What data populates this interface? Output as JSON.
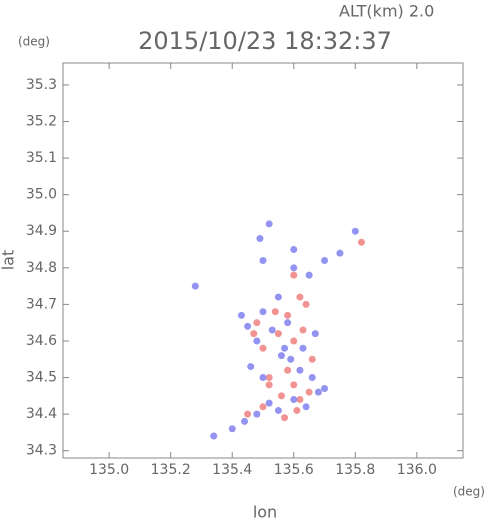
{
  "chart_data": {
    "type": "scatter",
    "title": "2015/10/23 18:32:37",
    "annotation": "ALT(km) 2.0",
    "x_unit": "(deg)",
    "y_unit": "(deg)",
    "x_label": "lon",
    "y_label": "lat",
    "xlim": [
      134.85,
      136.15
    ],
    "ylim": [
      34.28,
      35.36
    ],
    "xticks": [
      {
        "value": 135.0,
        "label": "135.0"
      },
      135.2,
      135.4,
      135.6,
      135.8,
      {
        "value": 136.0,
        "label": "136.0"
      }
    ],
    "yticks": [
      34.3,
      34.4,
      34.5,
      34.6,
      34.7,
      34.8,
      34.9,
      {
        "value": 35.0,
        "label": "35.0"
      },
      35.1,
      35.2,
      35.3
    ],
    "series": [
      {
        "color": "#f08080",
        "x": [
          135.45,
          135.5,
          135.56,
          135.6,
          135.62,
          135.52,
          135.48,
          135.58,
          135.64,
          135.55,
          135.5,
          135.6,
          135.63,
          135.66,
          135.52,
          135.58,
          135.61,
          135.47,
          135.6,
          135.82,
          135.62,
          135.54,
          135.57,
          135.65
        ],
        "y": [
          34.4,
          34.42,
          34.45,
          34.48,
          34.44,
          34.5,
          34.65,
          34.67,
          34.7,
          34.62,
          34.58,
          34.6,
          34.63,
          34.55,
          34.48,
          34.52,
          34.41,
          34.62,
          34.78,
          34.87,
          34.72,
          34.68,
          34.39,
          34.46
        ]
      },
      {
        "color": "#8080f0",
        "x": [
          135.34,
          135.4,
          135.44,
          135.48,
          135.52,
          135.55,
          135.6,
          135.64,
          135.68,
          135.5,
          135.46,
          135.56,
          135.62,
          135.66,
          135.7,
          135.48,
          135.53,
          135.58,
          135.63,
          135.45,
          135.5,
          135.55,
          135.28,
          135.5,
          135.6,
          135.7,
          135.75,
          135.8,
          135.43,
          135.57,
          135.67,
          135.52,
          135.49,
          135.6,
          135.65,
          135.59
        ],
        "y": [
          34.34,
          34.36,
          34.38,
          34.4,
          34.43,
          34.41,
          34.44,
          34.42,
          34.46,
          34.5,
          34.53,
          34.56,
          34.52,
          34.5,
          34.47,
          34.6,
          34.63,
          34.65,
          34.58,
          34.64,
          34.68,
          34.72,
          34.75,
          34.82,
          34.85,
          34.82,
          34.84,
          34.9,
          34.67,
          34.58,
          34.62,
          34.92,
          34.88,
          34.8,
          34.78,
          34.55
        ]
      }
    ]
  }
}
